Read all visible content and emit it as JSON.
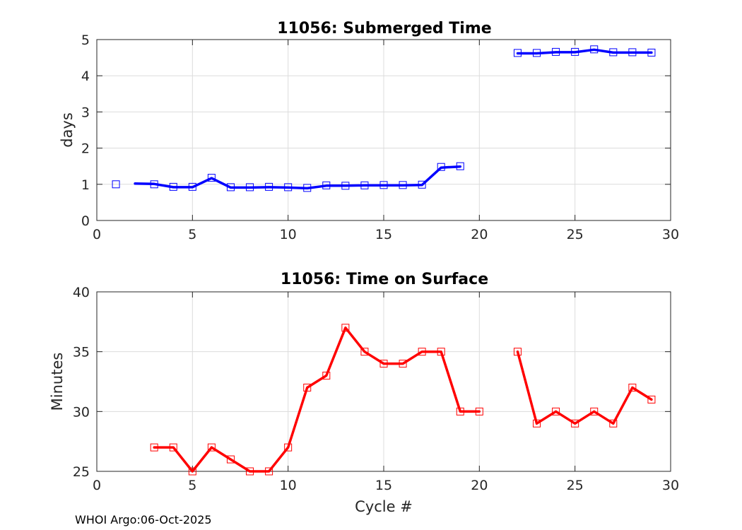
{
  "chart_data": [
    {
      "type": "line",
      "title": "11056: Submerged Time",
      "xlabel": "",
      "ylabel": "days",
      "xlim": [
        0,
        30
      ],
      "ylim": [
        0,
        5
      ],
      "xticks": [
        0,
        5,
        10,
        15,
        20,
        25,
        30
      ],
      "yticks": [
        0,
        1,
        2,
        3,
        4,
        5
      ],
      "grid": true,
      "series": [
        {
          "color": "#0000ff",
          "marker": "square",
          "points": [
            [
              1,
              1.0
            ],
            [
              3,
              1.0
            ],
            [
              4,
              0.93
            ],
            [
              5,
              0.93
            ],
            [
              6,
              1.18
            ],
            [
              7,
              0.92
            ],
            [
              8,
              0.92
            ],
            [
              9,
              0.93
            ],
            [
              10,
              0.92
            ],
            [
              11,
              0.9
            ],
            [
              12,
              0.97
            ],
            [
              13,
              0.96
            ],
            [
              14,
              0.97
            ],
            [
              15,
              0.98
            ],
            [
              16,
              0.98
            ],
            [
              17,
              0.99
            ],
            [
              18,
              1.48
            ],
            [
              19,
              1.5
            ],
            [
              22,
              4.63
            ],
            [
              23,
              4.63
            ],
            [
              24,
              4.66
            ],
            [
              25,
              4.66
            ],
            [
              26,
              4.73
            ],
            [
              27,
              4.65
            ],
            [
              28,
              4.65
            ],
            [
              29,
              4.64
            ]
          ]
        }
      ],
      "line_segments": [
        [
          [
            2,
            1.02
          ],
          [
            3,
            1.01
          ],
          [
            4,
            0.92
          ],
          [
            5,
            0.92
          ],
          [
            6,
            1.17
          ],
          [
            7,
            0.91
          ],
          [
            8,
            0.91
          ],
          [
            9,
            0.92
          ],
          [
            10,
            0.91
          ],
          [
            11,
            0.89
          ],
          [
            12,
            0.96
          ],
          [
            13,
            0.96
          ],
          [
            14,
            0.97
          ],
          [
            15,
            0.97
          ],
          [
            16,
            0.97
          ],
          [
            17,
            0.98
          ],
          [
            18,
            1.46
          ],
          [
            19,
            1.49
          ]
        ],
        [
          [
            22,
            4.62
          ],
          [
            23,
            4.62
          ],
          [
            24,
            4.65
          ],
          [
            25,
            4.65
          ],
          [
            26,
            4.72
          ],
          [
            27,
            4.64
          ],
          [
            28,
            4.64
          ],
          [
            29,
            4.64
          ]
        ]
      ]
    },
    {
      "type": "line",
      "title": "11056: Time on Surface",
      "xlabel": "Cycle #",
      "ylabel": "Minutes",
      "xlim": [
        0,
        30
      ],
      "ylim": [
        25,
        40
      ],
      "xticks": [
        0,
        5,
        10,
        15,
        20,
        25,
        30
      ],
      "yticks": [
        25,
        30,
        35,
        40
      ],
      "grid": true,
      "series": [
        {
          "color": "#ff0000",
          "marker": "square",
          "points": [
            [
              3,
              27
            ],
            [
              4,
              27
            ],
            [
              5,
              25
            ],
            [
              6,
              27
            ],
            [
              7,
              26
            ],
            [
              8,
              25
            ],
            [
              9,
              25
            ],
            [
              10,
              27
            ],
            [
              11,
              32
            ],
            [
              12,
              33
            ],
            [
              13,
              37
            ],
            [
              14,
              35
            ],
            [
              15,
              34
            ],
            [
              16,
              34
            ],
            [
              17,
              35
            ],
            [
              18,
              35
            ],
            [
              19,
              30
            ],
            [
              20,
              30
            ],
            [
              22,
              35
            ],
            [
              23,
              29
            ],
            [
              24,
              30
            ],
            [
              25,
              29
            ],
            [
              26,
              30
            ],
            [
              27,
              29
            ],
            [
              28,
              32
            ],
            [
              29,
              31
            ]
          ]
        }
      ],
      "line_segments": [
        [
          [
            3,
            27
          ],
          [
            4,
            27
          ],
          [
            5,
            25
          ],
          [
            6,
            27
          ],
          [
            7,
            26
          ],
          [
            8,
            25
          ],
          [
            9,
            25
          ],
          [
            10,
            27
          ],
          [
            11,
            32
          ],
          [
            12,
            33
          ],
          [
            13,
            37
          ],
          [
            14,
            35
          ],
          [
            15,
            34
          ],
          [
            16,
            34
          ],
          [
            17,
            35
          ],
          [
            18,
            35
          ],
          [
            19,
            30
          ],
          [
            20,
            30
          ]
        ],
        [
          [
            22,
            35
          ],
          [
            23,
            29
          ],
          [
            24,
            30
          ],
          [
            25,
            29
          ],
          [
            26,
            30
          ],
          [
            27,
            29
          ],
          [
            28,
            32
          ],
          [
            29,
            31
          ]
        ]
      ]
    }
  ],
  "footer": "WHOI Argo:06-Oct-2025"
}
